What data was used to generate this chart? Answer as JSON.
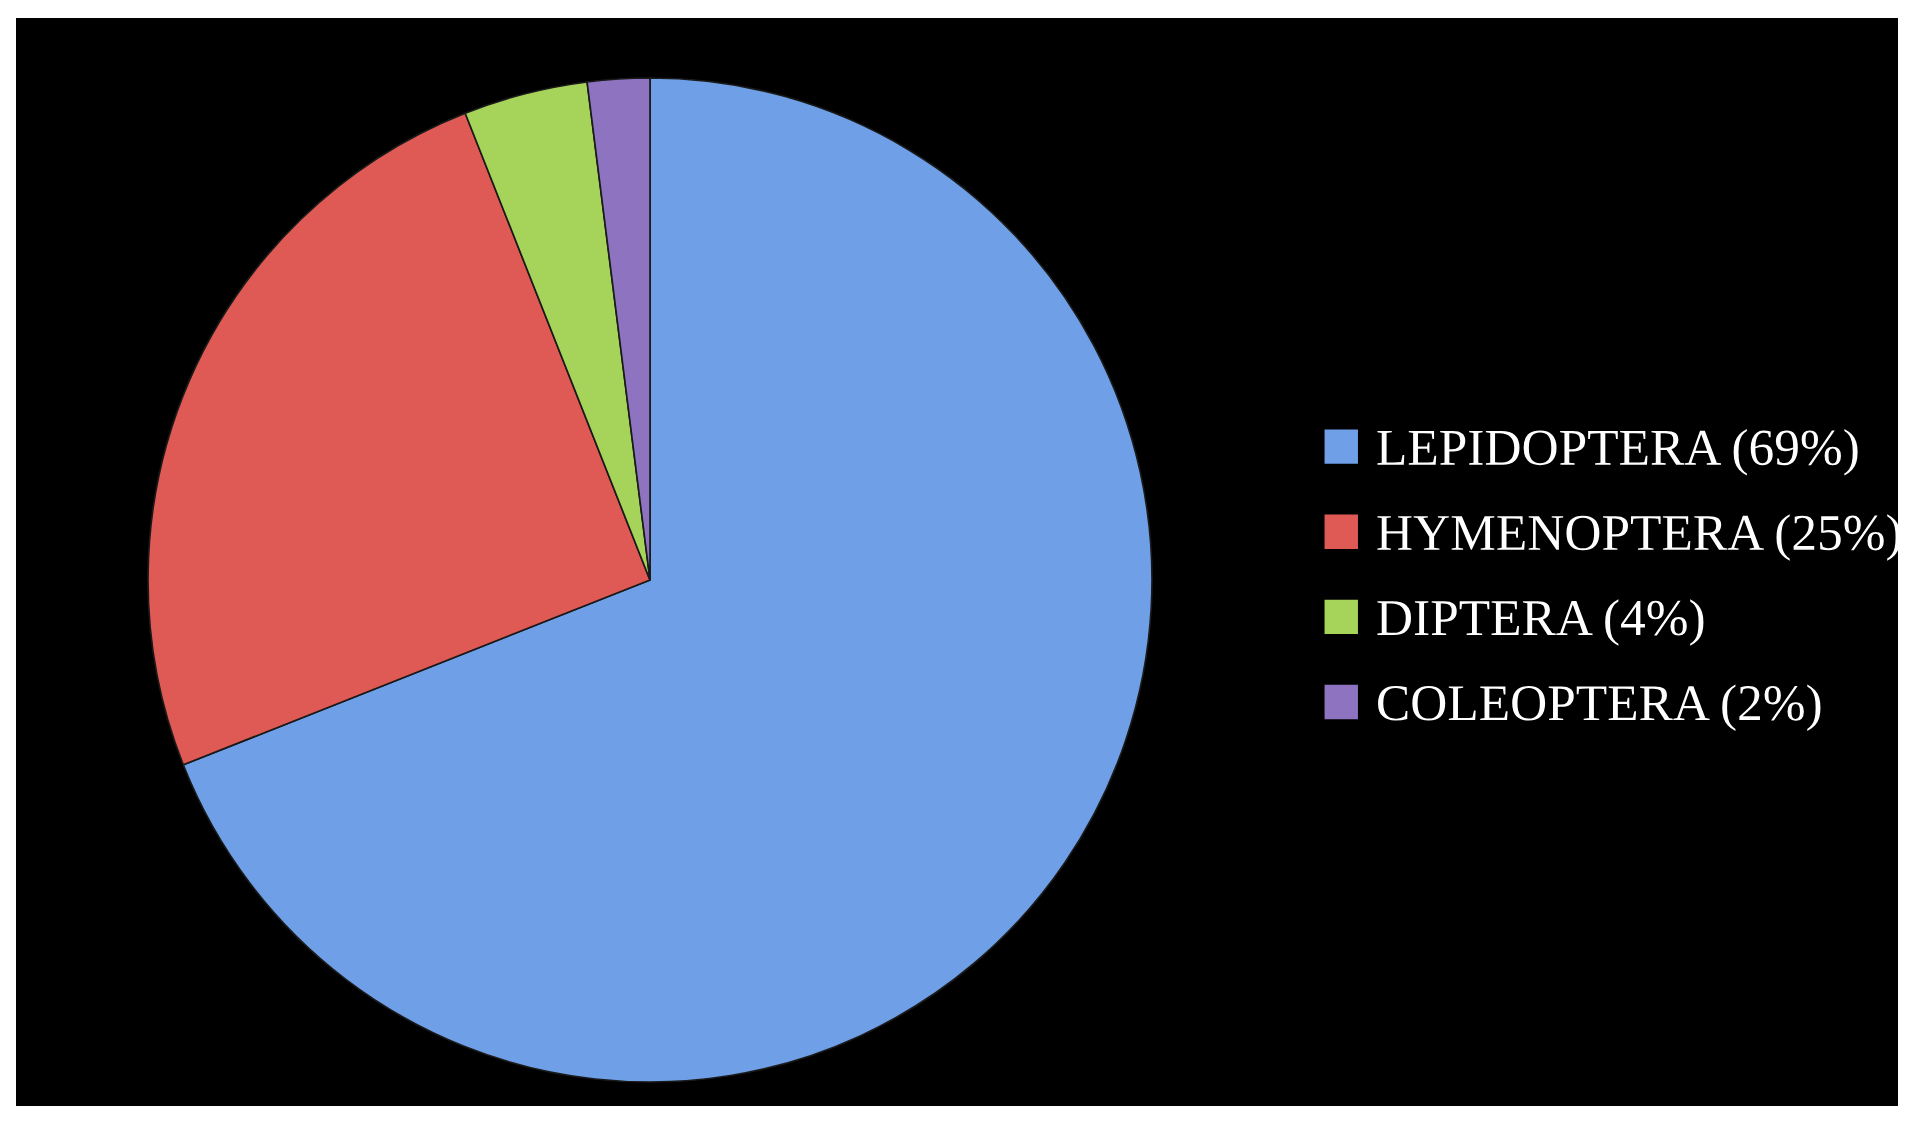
{
  "chart_data": {
    "type": "pie",
    "categories": [
      "LEPIDOPTERA (69%)",
      "HYMENOPTERA (25%)",
      "DIPTERA (4%)",
      "COLEOPTERA (2%)"
    ],
    "values": [
      69,
      25,
      4,
      2
    ],
    "colors": [
      "#6f9fe6",
      "#e05a55",
      "#a6d45a",
      "#8e74c0"
    ],
    "legend": "right"
  }
}
